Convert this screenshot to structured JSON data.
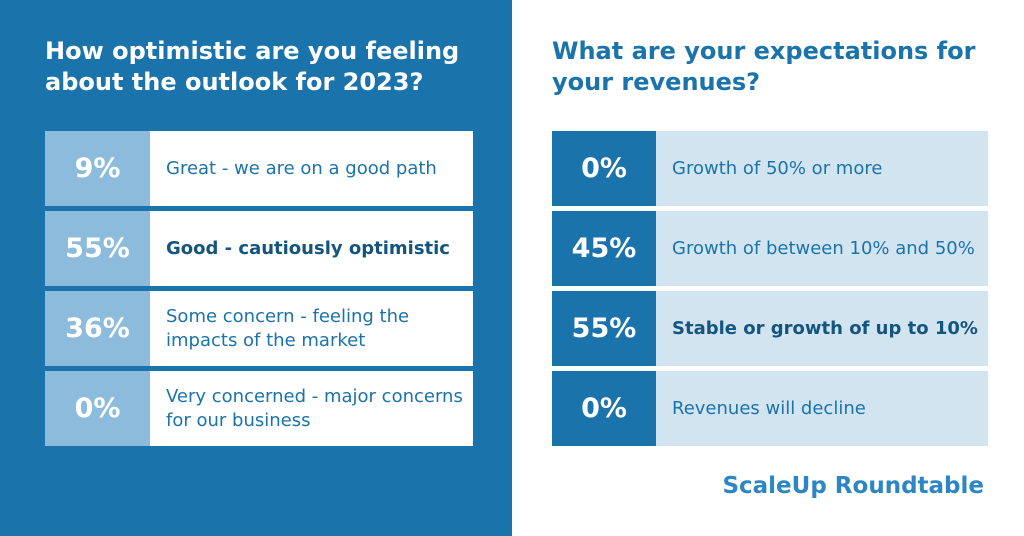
{
  "chart_data": [
    {
      "type": "table",
      "title": "How optimistic are you feeling about the outlook for 2023?",
      "rows": [
        {
          "value": "9%",
          "label": "Great - we are on a good path",
          "emphasis": false
        },
        {
          "value": "55%",
          "label": "Good - cautiously optimistic",
          "emphasis": true
        },
        {
          "value": "36%",
          "label": "Some concern - feeling the impacts of the market",
          "emphasis": false
        },
        {
          "value": "0%",
          "label": "Very concerned - major concerns for our business",
          "emphasis": false
        }
      ]
    },
    {
      "type": "table",
      "title": "What are your expectations for your revenues?",
      "rows": [
        {
          "value": "0%",
          "label": "Growth of 50% or more",
          "emphasis": false
        },
        {
          "value": "45%",
          "label": "Growth of between 10% and 50%",
          "emphasis": false
        },
        {
          "value": "55%",
          "label": "Stable or growth of up to 10%",
          "emphasis": true
        },
        {
          "value": "0%",
          "label": "Revenues will decline",
          "emphasis": false
        }
      ]
    }
  ],
  "brand": "ScaleUp Roundtable",
  "colors": {
    "primary_blue": "#1a73aa",
    "light_blue": "#8dbbdc",
    "pale_blue": "#d3e4f1",
    "dark_blue": "#13557f",
    "brand_blue": "#2c86c3"
  }
}
